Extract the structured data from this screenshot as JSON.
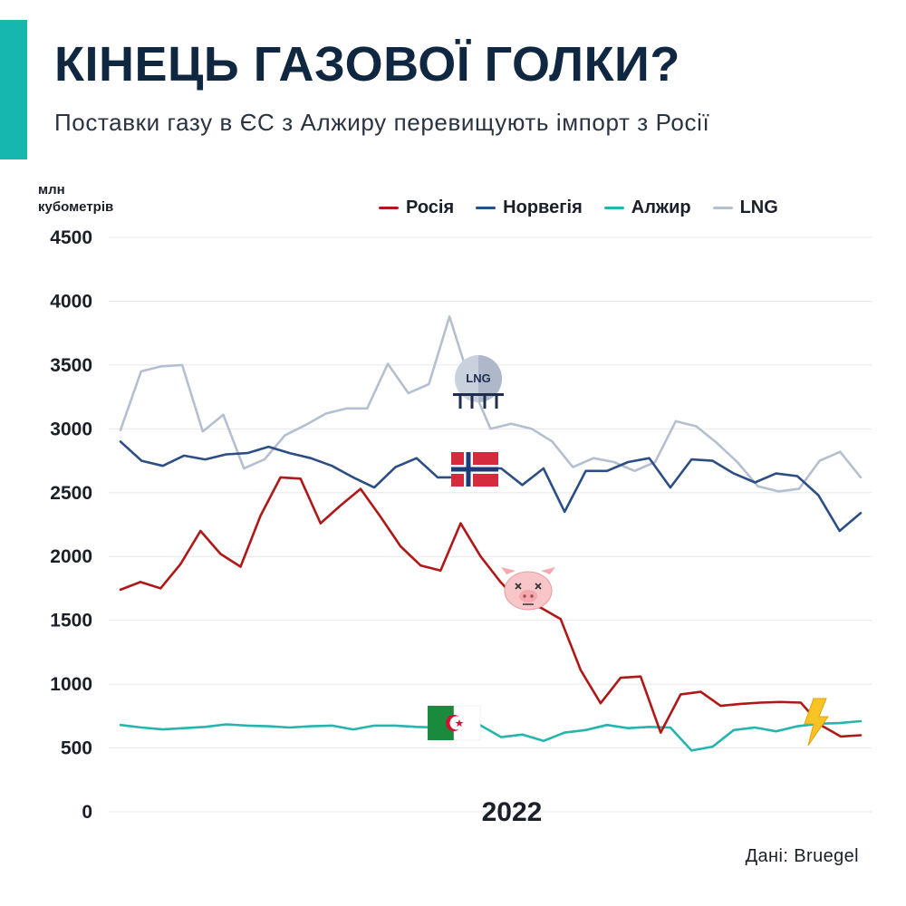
{
  "header": {
    "title": "КІНЕЦЬ ГАЗОВОЇ ГОЛКИ?",
    "subtitle": "Поставки газу в ЄС з Алжиру перевищують імпорт з Росії"
  },
  "source": "Дані: Bruegel",
  "colors": {
    "accent": "#16b8ad",
    "russia": "#b01818",
    "norway": "#2d4e85",
    "algeria": "#26b5ad",
    "lng": "#b4bfd0"
  },
  "icons": {
    "lng": "lng-tank-icon",
    "norway": "norway-flag-icon",
    "russia": "pig-face-icon",
    "algeria": "algeria-flag-icon",
    "lightning": "lightning-icon"
  },
  "chart_data": {
    "type": "line",
    "title": "",
    "ylabel": "млн\nкубометрів",
    "xlabel": "2022",
    "ylim": [
      0,
      4500
    ],
    "yticks": [
      0,
      500,
      1000,
      1500,
      2000,
      2500,
      3000,
      3500,
      4000,
      4500
    ],
    "grid": true,
    "legend_position": "top",
    "series": [
      {
        "name": "Росія",
        "values": [
          1740,
          1800,
          1750,
          1940,
          2200,
          2020,
          1920,
          2320,
          2620,
          2610,
          2260,
          2400,
          2530,
          2310,
          2080,
          1930,
          1890,
          2260,
          2000,
          1800,
          1630,
          1600,
          1510,
          1110,
          850,
          1050,
          1060,
          620,
          920,
          940,
          830,
          845,
          855,
          860,
          855,
          680,
          590,
          600
        ]
      },
      {
        "name": "Норвегія",
        "values": [
          2900,
          2750,
          2710,
          2790,
          2760,
          2800,
          2810,
          2860,
          2810,
          2770,
          2710,
          2620,
          2540,
          2700,
          2770,
          2620,
          2620,
          2690,
          2690,
          2560,
          2690,
          2350,
          2670,
          2670,
          2740,
          2770,
          2540,
          2760,
          2750,
          2650,
          2580,
          2650,
          2630,
          2480,
          2200,
          2340
        ]
      },
      {
        "name": "Алжир",
        "values": [
          680,
          660,
          645,
          655,
          665,
          685,
          675,
          670,
          660,
          670,
          675,
          645,
          675,
          675,
          665,
          660,
          660,
          680,
          585,
          605,
          555,
          620,
          640,
          680,
          655,
          665,
          660,
          480,
          510,
          640,
          660,
          630,
          670,
          690,
          695,
          710
        ]
      },
      {
        "name": "LNG",
        "values": [
          2990,
          3450,
          3490,
          3500,
          2980,
          3110,
          2690,
          2760,
          2950,
          3030,
          3120,
          3160,
          3160,
          3510,
          3280,
          3350,
          3880,
          3370,
          3000,
          3040,
          3000,
          2900,
          2700,
          2770,
          2740,
          2670,
          2740,
          3060,
          3020,
          2890,
          2740,
          2550,
          2510,
          2530,
          2750,
          2820,
          2620
        ]
      }
    ]
  }
}
